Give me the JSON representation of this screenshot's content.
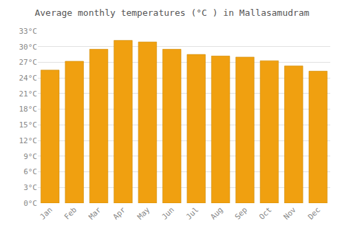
{
  "chart_data": {
    "type": "bar",
    "title": "Average monthly temperatures (°C ) in Mallasamudram",
    "categories": [
      "Jan",
      "Feb",
      "Mar",
      "Apr",
      "May",
      "Jun",
      "Jul",
      "Aug",
      "Sep",
      "Oct",
      "Nov",
      "Dec"
    ],
    "values": [
      25.5,
      27.2,
      29.5,
      31.2,
      30.9,
      29.5,
      28.5,
      28.2,
      28.0,
      27.3,
      26.3,
      25.3
    ],
    "color": "#F0A010",
    "ylim": [
      0,
      33
    ],
    "yticks": [
      {
        "value": 0,
        "label": "0°C"
      },
      {
        "value": 3,
        "label": "3°C"
      },
      {
        "value": 6,
        "label": "6°C"
      },
      {
        "value": 9,
        "label": "9°C"
      },
      {
        "value": 12,
        "label": "12°C"
      },
      {
        "value": 15,
        "label": "15°C"
      },
      {
        "value": 18,
        "label": "18°C"
      },
      {
        "value": 21,
        "label": "21°C"
      },
      {
        "value": 24,
        "label": "24°C"
      },
      {
        "value": 27,
        "label": "27°C"
      },
      {
        "value": 30,
        "label": "30°C"
      },
      {
        "value": 33,
        "label": "33°C"
      }
    ],
    "grid": true
  }
}
